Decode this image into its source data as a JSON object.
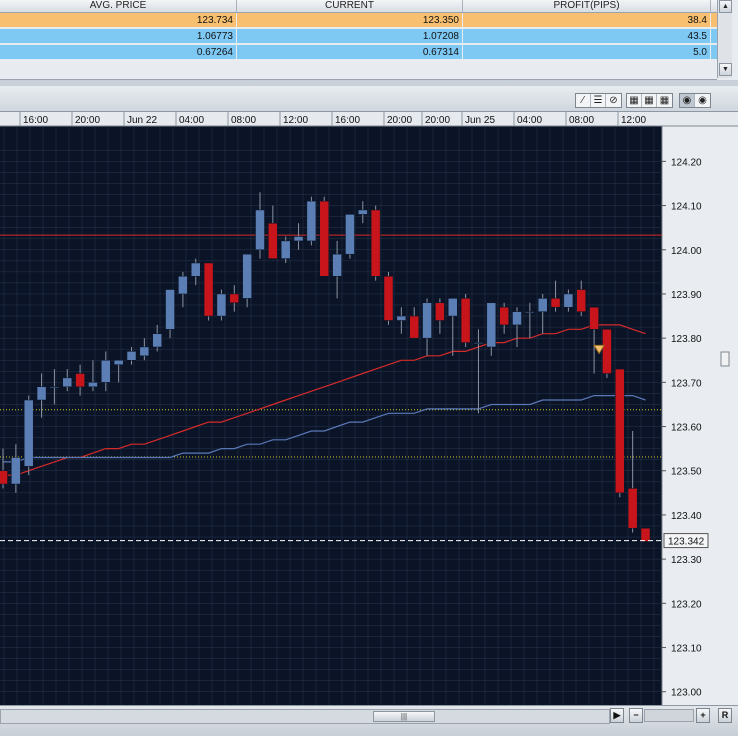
{
  "positions": {
    "columns": [
      "AVG. PRICE",
      "CURRENT",
      "PROFIT(PIPS)"
    ],
    "rows": [
      {
        "avg": "123.734",
        "current": "123.350",
        "profit": "38.4",
        "color": "#f7bf6f"
      },
      {
        "avg": "1.06773",
        "current": "1.07208",
        "profit": "43.5",
        "color": "#7ec8f4"
      },
      {
        "avg": "0.67264",
        "current": "0.67314",
        "profit": "5.0",
        "color": "#7ec8f4"
      }
    ]
  },
  "toolbar": {
    "draw_icons": [
      "line-draw-icon",
      "hline-icon",
      "no-draw-icon"
    ],
    "grid_icons": [
      "grid-icon",
      "grid-icon",
      "grid-icon"
    ],
    "view_icons": [
      "circle-icon",
      "circle-icon"
    ]
  },
  "bottom": {
    "scroll_thumb": "|||",
    "play": "▶",
    "minus": "−",
    "plus": "+",
    "reset": "R"
  },
  "chart_data": {
    "type": "candlestick",
    "time_labels": [
      "16:00",
      "20:00",
      "Jun 22",
      "04:00",
      "08:00",
      "12:00",
      "16:00",
      "20:00",
      "20:00",
      "Jun 25",
      "04:00",
      "08:00",
      "12:00"
    ],
    "y_ticks": [
      "124.20",
      "124.10",
      "124.00",
      "123.90",
      "123.80",
      "123.70",
      "123.60",
      "123.50",
      "123.40",
      "123.30",
      "123.20",
      "123.10",
      "123.00"
    ],
    "ylim": [
      122.97,
      124.28
    ],
    "current_price": 123.342,
    "current_price_label": "123.342",
    "horizontal_lines": [
      {
        "price": 124.033,
        "color": "#d22a2a",
        "style": "solid"
      },
      {
        "price": 123.638,
        "color": "#d6d22a",
        "style": "dotted"
      },
      {
        "price": 123.531,
        "color": "#d6d22a",
        "style": "dotted"
      }
    ],
    "candles": [
      [
        123.5,
        123.55,
        123.46,
        123.47
      ],
      [
        123.47,
        123.56,
        123.45,
        123.53
      ],
      [
        123.51,
        123.67,
        123.49,
        123.66
      ],
      [
        123.66,
        123.72,
        123.62,
        123.69
      ],
      [
        123.69,
        123.73,
        123.65,
        123.69
      ],
      [
        123.69,
        123.73,
        123.68,
        123.71
      ],
      [
        123.72,
        123.74,
        123.67,
        123.69
      ],
      [
        123.69,
        123.75,
        123.68,
        123.7
      ],
      [
        123.7,
        123.77,
        123.68,
        123.75
      ],
      [
        123.74,
        123.75,
        123.7,
        123.75
      ],
      [
        123.75,
        123.78,
        123.74,
        123.77
      ],
      [
        123.76,
        123.8,
        123.75,
        123.78
      ],
      [
        123.78,
        123.83,
        123.77,
        123.81
      ],
      [
        123.82,
        123.91,
        123.8,
        123.91
      ],
      [
        123.9,
        123.95,
        123.87,
        123.94
      ],
      [
        123.94,
        123.98,
        123.92,
        123.97
      ],
      [
        123.97,
        123.97,
        123.84,
        123.85
      ],
      [
        123.85,
        123.91,
        123.84,
        123.9
      ],
      [
        123.9,
        123.92,
        123.86,
        123.88
      ],
      [
        123.89,
        123.99,
        123.87,
        123.99
      ],
      [
        124.0,
        124.13,
        123.98,
        124.09
      ],
      [
        124.06,
        124.1,
        123.98,
        123.98
      ],
      [
        123.98,
        124.03,
        123.97,
        124.02
      ],
      [
        124.02,
        124.06,
        124.0,
        124.03
      ],
      [
        124.02,
        124.12,
        124.01,
        124.11
      ],
      [
        124.11,
        124.12,
        123.94,
        123.94
      ],
      [
        123.94,
        124.02,
        123.89,
        123.99
      ],
      [
        123.99,
        124.08,
        123.98,
        124.08
      ],
      [
        124.08,
        124.11,
        124.06,
        124.09
      ],
      [
        124.09,
        124.1,
        123.93,
        123.94
      ],
      [
        123.94,
        123.95,
        123.83,
        123.84
      ],
      [
        123.84,
        123.87,
        123.81,
        123.85
      ],
      [
        123.85,
        123.87,
        123.8,
        123.8
      ],
      [
        123.8,
        123.89,
        123.76,
        123.88
      ],
      [
        123.88,
        123.89,
        123.81,
        123.84
      ],
      [
        123.85,
        123.89,
        123.76,
        123.89
      ],
      [
        123.89,
        123.9,
        123.78,
        123.79
      ],
      [
        123.79,
        123.82,
        123.63,
        123.79
      ],
      [
        123.78,
        123.88,
        123.76,
        123.88
      ],
      [
        123.87,
        123.88,
        123.81,
        123.83
      ],
      [
        123.83,
        123.87,
        123.78,
        123.86
      ],
      [
        123.86,
        123.88,
        123.8,
        123.86
      ],
      [
        123.86,
        123.9,
        123.81,
        123.89
      ],
      [
        123.89,
        123.93,
        123.86,
        123.87
      ],
      [
        123.87,
        123.91,
        123.86,
        123.9
      ],
      [
        123.91,
        123.93,
        123.85,
        123.86
      ],
      [
        123.87,
        123.87,
        123.72,
        123.82
      ],
      [
        123.82,
        123.82,
        123.71,
        123.72
      ],
      [
        123.73,
        123.73,
        123.44,
        123.45
      ],
      [
        123.46,
        123.59,
        123.36,
        123.37
      ],
      [
        123.37,
        123.37,
        123.34,
        123.34
      ]
    ],
    "series": [
      {
        "name": "",
        "color": "#d62b2b",
        "values": [
          123.49,
          123.49,
          123.5,
          123.51,
          123.52,
          123.53,
          123.53,
          123.54,
          123.55,
          123.55,
          123.56,
          123.56,
          123.57,
          123.58,
          123.59,
          123.6,
          123.61,
          123.61,
          123.62,
          123.63,
          123.64,
          123.65,
          123.66,
          123.67,
          123.68,
          123.69,
          123.7,
          123.71,
          123.72,
          123.73,
          123.74,
          123.75,
          123.75,
          123.76,
          123.76,
          123.77,
          123.77,
          123.78,
          123.79,
          123.79,
          123.8,
          123.8,
          123.81,
          123.81,
          123.82,
          123.82,
          123.83,
          123.83,
          123.83,
          123.82,
          123.81
        ]
      },
      {
        "name": "",
        "color": "#5a78b8",
        "values": [
          123.52,
          123.52,
          123.53,
          123.53,
          123.53,
          123.53,
          123.53,
          123.53,
          123.53,
          123.53,
          123.53,
          123.53,
          123.53,
          123.53,
          123.54,
          123.54,
          123.54,
          123.55,
          123.55,
          123.56,
          123.56,
          123.57,
          123.57,
          123.58,
          123.59,
          123.59,
          123.6,
          123.61,
          123.61,
          123.62,
          123.63,
          123.63,
          123.63,
          123.64,
          123.64,
          123.64,
          123.64,
          123.64,
          123.65,
          123.65,
          123.65,
          123.65,
          123.66,
          123.66,
          123.66,
          123.66,
          123.67,
          123.67,
          123.67,
          123.67,
          123.66
        ]
      }
    ],
    "colors": {
      "bull": "#5b7fb5",
      "bear": "#c8141b",
      "background": "#0b1426",
      "grid": "#26354f"
    }
  }
}
